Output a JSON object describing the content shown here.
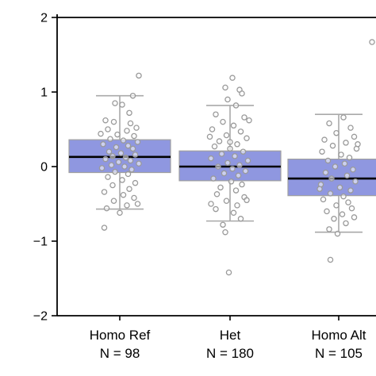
{
  "chart_data": {
    "type": "box",
    "title": "",
    "xlabel": "",
    "ylabel": "",
    "ylim": [
      -2,
      2
    ],
    "yticks": [
      -2,
      -1,
      0,
      1,
      2
    ],
    "grid": false,
    "legend": "none",
    "colors": {
      "box_fill": "#8f97e0",
      "box_edge": "#a0a0a0",
      "median": "#000000",
      "whisker": "#a9a9a9",
      "point_edge": "#9a9a9a",
      "axis": "#000000"
    },
    "categories": [
      {
        "name": "Homo Ref",
        "n_label": "N = 98",
        "q1": -0.08,
        "median": 0.13,
        "q3": 0.36,
        "whisker_low": -0.57,
        "whisker_high": 0.95
      },
      {
        "name": "Het",
        "n_label": "N = 180",
        "q1": -0.19,
        "median": 0.0,
        "q3": 0.21,
        "whisker_low": -0.73,
        "whisker_high": 0.82
      },
      {
        "name": "Homo Alt",
        "n_label": "N = 105",
        "q1": -0.39,
        "median": -0.16,
        "q3": 0.1,
        "whisker_low": -0.88,
        "whisker_high": 0.7
      }
    ],
    "points": [
      [
        0.16,
        1.22
      ],
      [
        0.11,
        0.95
      ],
      [
        -0.04,
        0.85
      ],
      [
        0.02,
        0.83
      ],
      [
        0.08,
        0.72
      ],
      [
        -0.12,
        0.62
      ],
      [
        -0.05,
        0.6
      ],
      [
        0.09,
        0.58
      ],
      [
        -0.1,
        0.5
      ],
      [
        0.06,
        0.48
      ],
      [
        -0.02,
        0.43
      ],
      [
        0.12,
        0.41
      ],
      [
        -0.08,
        0.37
      ],
      [
        0.03,
        0.35
      ],
      [
        0.15,
        0.33
      ],
      [
        -0.14,
        0.3
      ],
      [
        0.07,
        0.28
      ],
      [
        -0.03,
        0.26
      ],
      [
        0.11,
        0.24
      ],
      [
        -0.09,
        0.2
      ],
      [
        0.01,
        0.18
      ],
      [
        0.13,
        0.16
      ],
      [
        -0.06,
        0.14
      ],
      [
        0.05,
        0.12
      ],
      [
        -0.12,
        0.1
      ],
      [
        0.09,
        0.08
      ],
      [
        -0.01,
        0.06
      ],
      [
        0.16,
        0.04
      ],
      [
        -0.07,
        0.02
      ],
      [
        0.04,
        0.0
      ],
      [
        -0.15,
        -0.02
      ],
      [
        0.1,
        -0.04
      ],
      [
        -0.04,
        -0.07
      ],
      [
        0.07,
        -0.1
      ],
      [
        -0.1,
        -0.14
      ],
      [
        0.02,
        -0.18
      ],
      [
        0.13,
        -0.22
      ],
      [
        -0.06,
        -0.25
      ],
      [
        0.08,
        -0.3
      ],
      [
        -0.13,
        -0.34
      ],
      [
        0.03,
        -0.38
      ],
      [
        0.12,
        -0.42
      ],
      [
        -0.05,
        -0.46
      ],
      [
        0.06,
        -0.52
      ],
      [
        -0.11,
        -0.56
      ],
      [
        0.0,
        -0.62
      ],
      [
        -0.13,
        -0.82
      ],
      [
        0.14,
        0.52
      ],
      [
        -0.16,
        0.44
      ],
      [
        0.15,
        -0.5
      ],
      [
        0.02,
        1.19
      ],
      [
        -0.04,
        1.06
      ],
      [
        0.08,
        1.03
      ],
      [
        0.1,
        0.98
      ],
      [
        -0.02,
        0.9
      ],
      [
        0.05,
        0.82
      ],
      [
        -0.12,
        0.7
      ],
      [
        0.12,
        0.66
      ],
      [
        -0.06,
        0.6
      ],
      [
        0.03,
        0.55
      ],
      [
        -0.15,
        0.5
      ],
      [
        0.09,
        0.47
      ],
      [
        -0.03,
        0.42
      ],
      [
        0.14,
        0.38
      ],
      [
        -0.09,
        0.34
      ],
      [
        0.06,
        0.3
      ],
      [
        -0.13,
        0.27
      ],
      [
        0.0,
        0.24
      ],
      [
        0.11,
        0.2
      ],
      [
        -0.07,
        0.17
      ],
      [
        0.04,
        0.14
      ],
      [
        -0.16,
        0.11
      ],
      [
        0.15,
        0.08
      ],
      [
        -0.02,
        0.05
      ],
      [
        0.08,
        0.02
      ],
      [
        -0.1,
        0.0
      ],
      [
        0.02,
        -0.03
      ],
      [
        0.13,
        -0.06
      ],
      [
        -0.05,
        -0.09
      ],
      [
        0.07,
        -0.12
      ],
      [
        -0.14,
        -0.16
      ],
      [
        0.01,
        -0.2
      ],
      [
        0.1,
        -0.24
      ],
      [
        -0.08,
        -0.28
      ],
      [
        0.05,
        -0.32
      ],
      [
        -0.11,
        -0.37
      ],
      [
        0.12,
        -0.41
      ],
      [
        -0.03,
        -0.46
      ],
      [
        0.06,
        -0.52
      ],
      [
        -0.12,
        -0.57
      ],
      [
        0.03,
        -0.62
      ],
      [
        0.09,
        -0.7
      ],
      [
        -0.06,
        -0.78
      ],
      [
        -0.04,
        -0.88
      ],
      [
        -0.01,
        -1.42
      ],
      [
        0.16,
        0.62
      ],
      [
        -0.17,
        0.4
      ],
      [
        0.14,
        -0.45
      ],
      [
        -0.16,
        -0.5
      ],
      [
        0.0,
        0.33
      ],
      [
        0.28,
        1.67
      ],
      [
        0.04,
        0.66
      ],
      [
        -0.08,
        0.58
      ],
      [
        0.1,
        0.52
      ],
      [
        -0.02,
        0.45
      ],
      [
        0.13,
        0.4
      ],
      [
        -0.12,
        0.36
      ],
      [
        0.06,
        0.32
      ],
      [
        -0.05,
        0.28
      ],
      [
        0.15,
        0.24
      ],
      [
        -0.14,
        0.2
      ],
      [
        0.02,
        0.16
      ],
      [
        0.09,
        0.12
      ],
      [
        -0.09,
        0.08
      ],
      [
        0.05,
        0.04
      ],
      [
        -0.03,
        0.0
      ],
      [
        0.12,
        -0.04
      ],
      [
        -0.11,
        -0.08
      ],
      [
        0.07,
        -0.12
      ],
      [
        -0.06,
        -0.16
      ],
      [
        0.14,
        -0.2
      ],
      [
        -0.15,
        -0.24
      ],
      [
        0.01,
        -0.28
      ],
      [
        0.1,
        -0.32
      ],
      [
        -0.07,
        -0.36
      ],
      [
        0.04,
        -0.4
      ],
      [
        -0.13,
        -0.44
      ],
      [
        0.08,
        -0.48
      ],
      [
        -0.02,
        -0.52
      ],
      [
        0.11,
        -0.56
      ],
      [
        -0.1,
        -0.6
      ],
      [
        0.03,
        -0.64
      ],
      [
        -0.04,
        -0.7
      ],
      [
        0.06,
        -0.76
      ],
      [
        -0.08,
        -0.84
      ],
      [
        -0.01,
        -0.9
      ],
      [
        -0.07,
        -1.25
      ],
      [
        0.16,
        0.3
      ],
      [
        -0.16,
        -0.3
      ],
      [
        0.13,
        -0.68
      ]
    ],
    "point_groups": [
      50,
      50,
      40
    ]
  }
}
